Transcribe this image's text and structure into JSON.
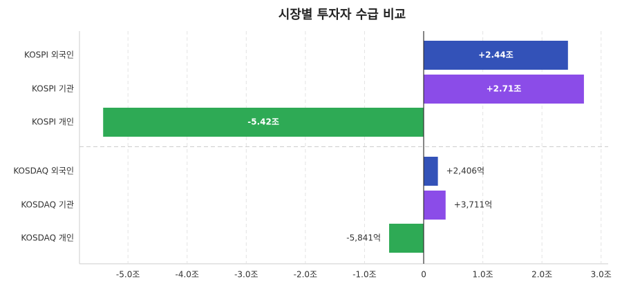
{
  "chart_data": {
    "type": "hbar",
    "title": "시장별 투자자 수급 비교",
    "categories": [
      "KOSPI 외국인",
      "KOSPI 기관",
      "KOSPI 개인",
      "KOSDAQ 외국인",
      "KOSDAQ 기관",
      "KOSDAQ 개인"
    ],
    "values": [
      2.44,
      2.71,
      -5.42,
      0.2406,
      0.3711,
      -0.5841
    ],
    "value_labels": [
      "+2.44조",
      "+2.71조",
      "-5.42조",
      "+2,406억",
      "+3,711억",
      "-5,841억"
    ],
    "colors": [
      "#3352b8",
      "#8b4ce8",
      "#2eaa55",
      "#3352b8",
      "#8b4ce8",
      "#2eaa55"
    ],
    "xlim": [
      -5.82,
      3.12
    ],
    "xticks": [
      {
        "value": -5,
        "label": "-5.0조"
      },
      {
        "value": -4,
        "label": "-4.0조"
      },
      {
        "value": -3,
        "label": "-3.0조"
      },
      {
        "value": -2,
        "label": "-2.0조"
      },
      {
        "value": -1,
        "label": "-1.0조"
      },
      {
        "value": 0,
        "label": "0"
      },
      {
        "value": 1,
        "label": "1.0조"
      },
      {
        "value": 2,
        "label": "2.0조"
      },
      {
        "value": 3,
        "label": "3.0조"
      }
    ],
    "grid": true
  }
}
